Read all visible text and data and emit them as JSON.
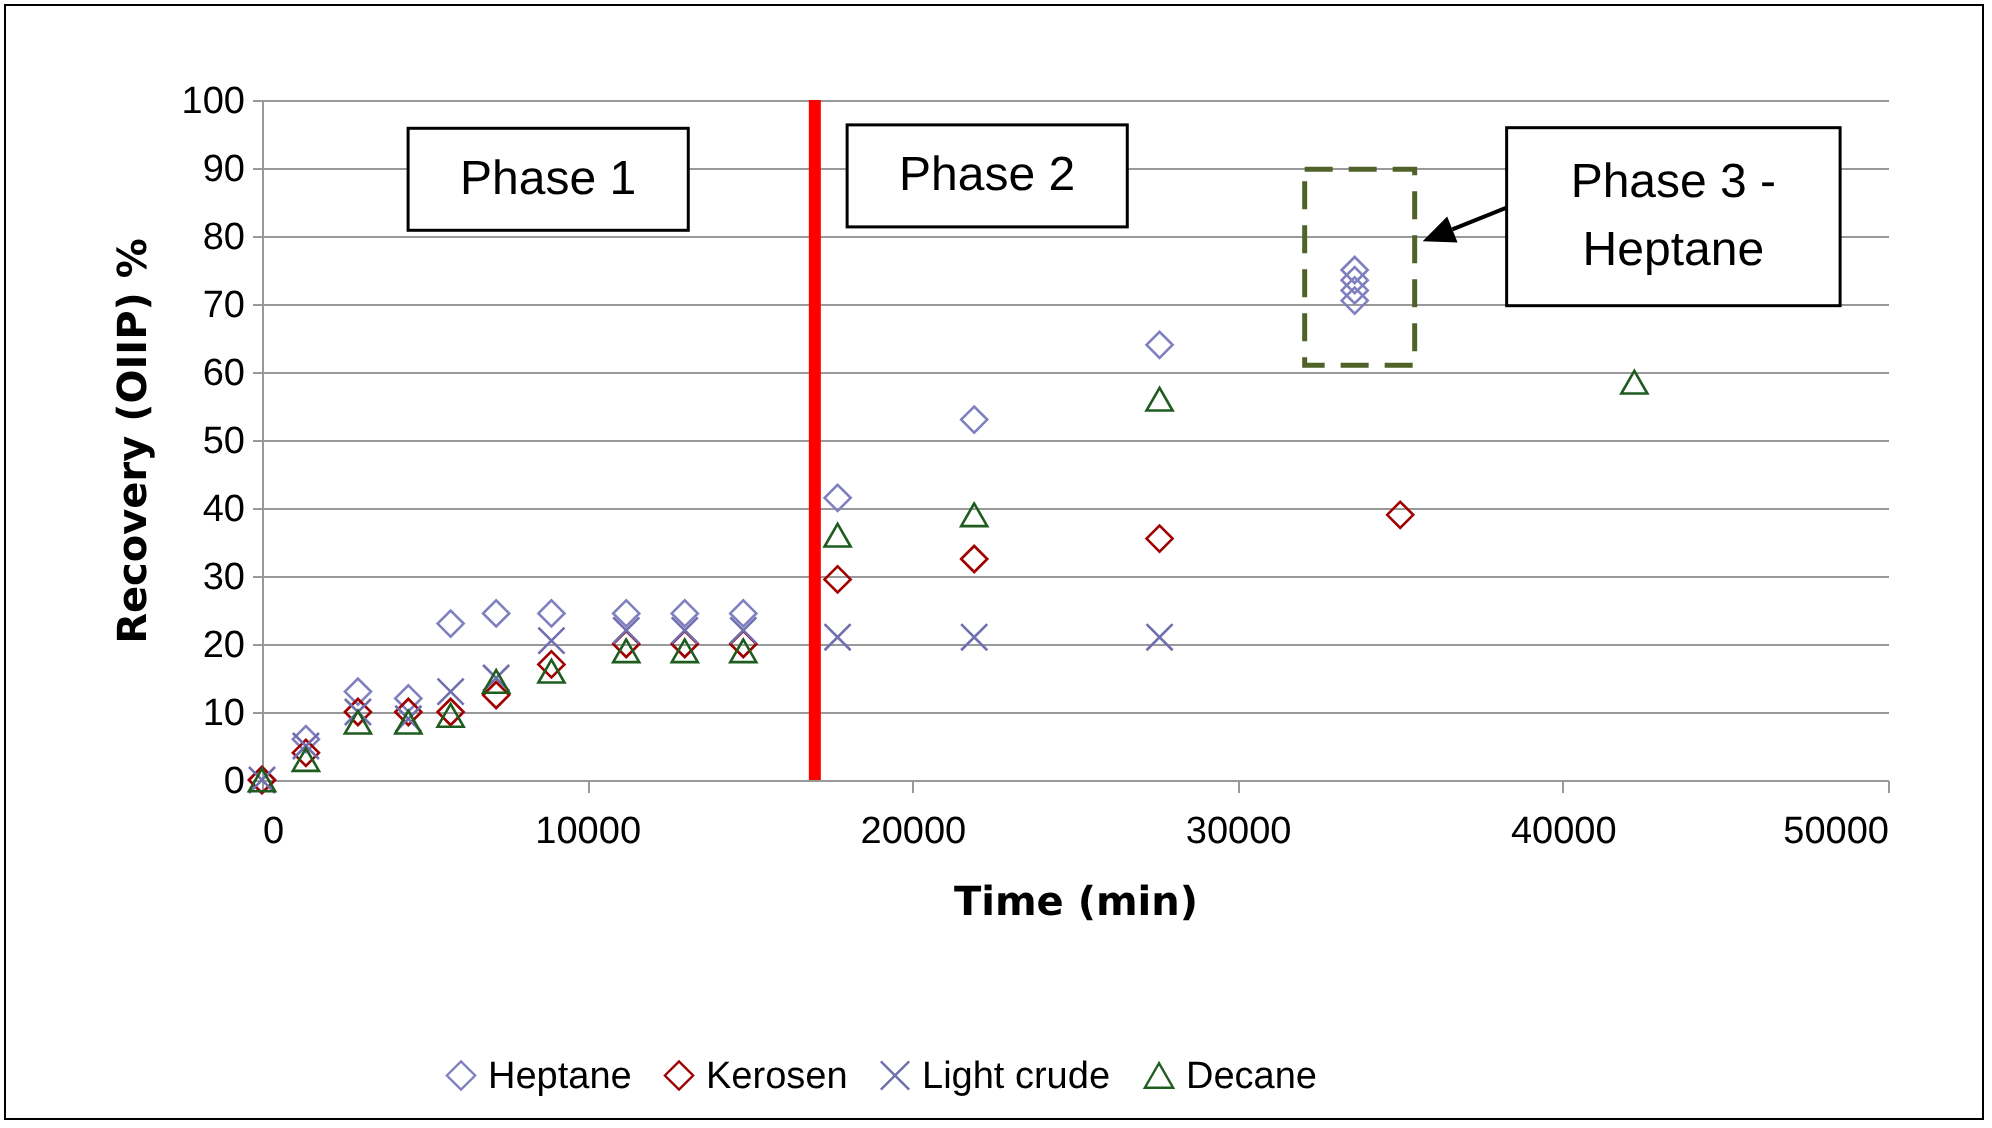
{
  "chart_data": {
    "type": "scatter",
    "xlabel": "Time (min)",
    "ylabel": "Recovery (OIIP) %",
    "xlim": [
      0,
      50000
    ],
    "xticks": [
      0,
      10000,
      20000,
      30000,
      40000,
      50000
    ],
    "ylim": [
      0,
      100
    ],
    "yticks": [
      0,
      10,
      20,
      30,
      40,
      50,
      60,
      70,
      80,
      90,
      100
    ],
    "grid": "y",
    "legend": "bottom",
    "series": [
      {
        "name": "Heptane",
        "color": "#8080c0",
        "marker": "diamond",
        "x": [
          0,
          1350,
          2950,
          4500,
          5800,
          7200,
          8900,
          11200,
          13000,
          14800,
          17700,
          21900,
          27600,
          33600,
          33600,
          33600,
          33600
        ],
        "values": [
          0,
          6,
          13,
          12,
          23,
          24.5,
          24.5,
          24.5,
          24.5,
          24.5,
          41.5,
          53,
          64,
          70.5,
          72,
          73.5,
          75
        ]
      },
      {
        "name": "Kerosen",
        "color": "#a00000",
        "marker": "diamond",
        "x": [
          0,
          1350,
          2950,
          4500,
          5800,
          7200,
          8900,
          11200,
          13000,
          14800,
          17700,
          21900,
          27600,
          35000
        ],
        "values": [
          0,
          4,
          10,
          10,
          10,
          12.5,
          17,
          20,
          20,
          20,
          29.5,
          32.5,
          35.5,
          39
        ]
      },
      {
        "name": "Light crude",
        "color": "#7070b0",
        "marker": "cross",
        "x": [
          0,
          1350,
          2950,
          4500,
          5800,
          7200,
          8900,
          11200,
          13000,
          14800,
          17700,
          21900,
          27600
        ],
        "values": [
          0,
          5,
          10,
          9,
          13,
          15,
          20.5,
          22,
          22,
          22,
          21,
          21,
          21
        ]
      },
      {
        "name": "Decane",
        "color": "#1f5c1f",
        "marker": "triangle",
        "x": [
          0,
          1350,
          2950,
          4500,
          5800,
          7200,
          8900,
          11200,
          13000,
          14800,
          17700,
          21900,
          27600,
          42200
        ],
        "values": [
          0,
          3,
          8.5,
          8.5,
          9.5,
          14.5,
          16,
          19,
          19,
          19,
          36,
          39,
          56,
          58.5
        ]
      }
    ],
    "ref_lines": [
      {
        "axis": "x",
        "value": 17000,
        "color": "#ff0000"
      }
    ],
    "annotations": [
      {
        "text": "Phase 1"
      },
      {
        "text": "Phase 2"
      },
      "Phase 3 - Heptane"
    ]
  }
}
